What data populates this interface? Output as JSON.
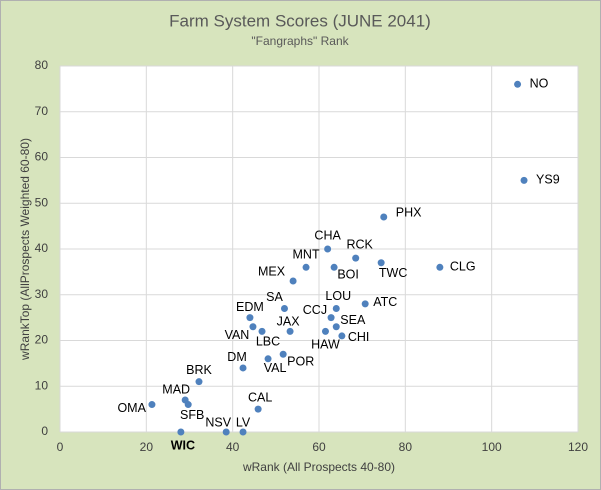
{
  "chart_data": {
    "type": "scatter",
    "title": "Farm System Scores (JUNE 2041)",
    "subtitle": "\"Fangraphs\" Rank",
    "xlabel": "wRank (All Prospects 40-80)",
    "ylabel": "wRankTop (AllProspects Weighted 60-80)",
    "color": "#4f81bd",
    "grid": true,
    "xlim": [
      0,
      120
    ],
    "xticks": [
      0,
      20,
      40,
      60,
      80,
      100,
      120
    ],
    "ylim": [
      0,
      80
    ],
    "yticks": [
      0,
      10,
      20,
      30,
      40,
      50,
      60,
      70,
      80
    ],
    "labels": [
      "NO",
      "YS9",
      "PHX",
      "CHA",
      "RCK",
      "MNT",
      "BOI",
      "TWC",
      "CLG",
      "MEX",
      "SA",
      "LOU",
      "ATC",
      "EDM",
      "CCJ",
      "SEA",
      "VAN",
      "JAX",
      "LBC",
      "HAW",
      "CHI",
      "DM",
      "POR",
      "VAL",
      "BRK",
      "MAD",
      "SFB",
      "OMA",
      "CAL",
      "WIC",
      "NSV",
      "LV"
    ],
    "x": [
      106,
      107.5,
      75,
      62,
      68.5,
      57,
      63.5,
      74.4,
      88,
      54,
      52,
      64,
      70.7,
      44,
      62.8,
      64,
      44.7,
      53.3,
      46.8,
      61.5,
      65.3,
      42.4,
      51.7,
      48.2,
      32.2,
      29,
      29.7,
      21.3,
      45.9,
      28,
      38.5,
      42.4
    ],
    "y": [
      76,
      55,
      47,
      40,
      38,
      36,
      36,
      37,
      36,
      33,
      27,
      27,
      28,
      25,
      25,
      23,
      23,
      22,
      22,
      22,
      21,
      14,
      17,
      16,
      11,
      7,
      6,
      6,
      5,
      0,
      0,
      0
    ]
  }
}
